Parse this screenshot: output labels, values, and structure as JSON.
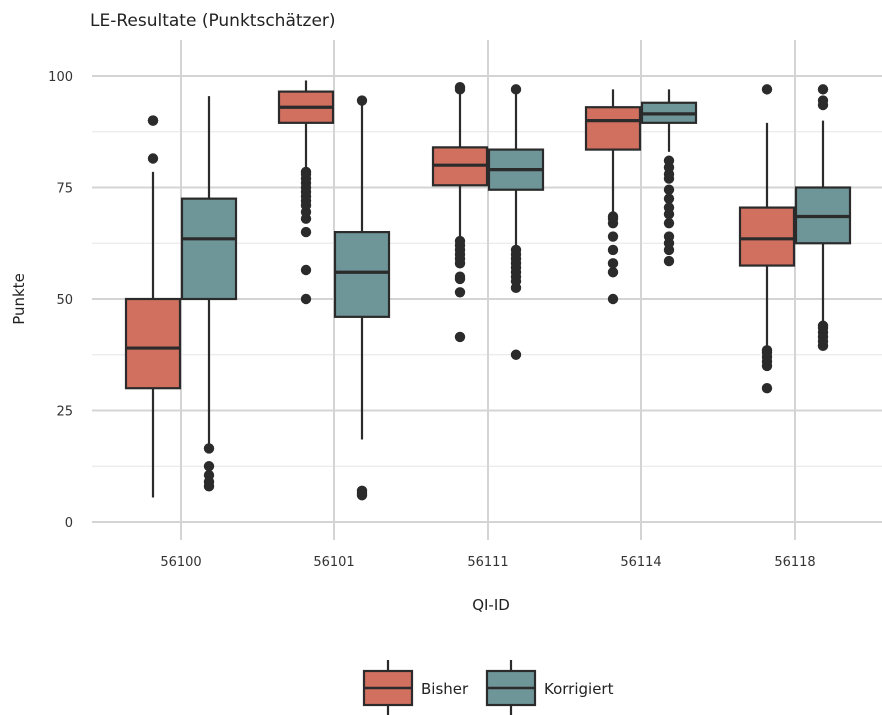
{
  "chart_data": {
    "type": "box",
    "title": "LE-Resultate (Punktschätzer)",
    "xlabel": "QI-ID",
    "ylabel": "Punkte",
    "ylim": [
      0,
      100
    ],
    "yticks": [
      0,
      25,
      50,
      75,
      100
    ],
    "grid": true,
    "legend_position": "bottom",
    "categories": [
      "56100",
      "56101",
      "56111",
      "56114",
      "56118"
    ],
    "series": [
      {
        "name": "Bisher",
        "color": "#d2705f",
        "boxes": [
          {
            "q1": 30,
            "median": 39,
            "q3": 50,
            "whisker_low": 5.5,
            "whisker_high": 78.5,
            "outliers": [
              81.5,
              90,
              90
            ]
          },
          {
            "q1": 89.5,
            "median": 93,
            "q3": 96.5,
            "whisker_low": 79.5,
            "whisker_high": 99,
            "outliers": [
              50,
              56.5,
              65,
              68,
              69.5,
              71,
              72,
              73,
              74,
              75,
              76,
              77,
              78,
              78.5
            ]
          },
          {
            "q1": 75.5,
            "median": 80,
            "q3": 84,
            "whisker_low": 63.5,
            "whisker_high": 96.5,
            "outliers": [
              41.5,
              51.5,
              54.5,
              55,
              58,
              59,
              60,
              61,
              62,
              63,
              97,
              97.5
            ]
          },
          {
            "q1": 83.5,
            "median": 90,
            "q3": 93,
            "whisker_low": 69,
            "whisker_high": 97,
            "outliers": [
              50,
              56,
              58,
              61,
              64,
              67,
              68,
              68.5
            ]
          },
          {
            "q1": 57.5,
            "median": 63.5,
            "q3": 70.5,
            "whisker_low": 39,
            "whisker_high": 89.5,
            "outliers": [
              30,
              35,
              36,
              37,
              38,
              38.5,
              97
            ]
          }
        ]
      },
      {
        "name": "Korrigiert",
        "color": "#6e9699",
        "boxes": [
          {
            "q1": 50,
            "median": 63.5,
            "q3": 72.5,
            "whisker_low": 17,
            "whisker_high": 95.5,
            "outliers": [
              8,
              9,
              10.5,
              12.5,
              16.5
            ]
          },
          {
            "q1": 46,
            "median": 56,
            "q3": 65,
            "whisker_low": 18.5,
            "whisker_high": 94.5,
            "outliers": [
              6,
              6.5,
              7,
              94.5
            ]
          },
          {
            "q1": 74.5,
            "median": 79,
            "q3": 83.5,
            "whisker_low": 61,
            "whisker_high": 96.5,
            "outliers": [
              37.5,
              52.5,
              54,
              55,
              56,
              57,
              58,
              59,
              60,
              61,
              97
            ]
          },
          {
            "q1": 89.5,
            "median": 91.5,
            "q3": 94,
            "whisker_low": 83,
            "whisker_high": 97,
            "outliers": [
              58.5,
              61,
              62.5,
              64,
              67,
              69,
              70.5,
              72.5,
              74.5,
              77,
              78,
              79.5,
              81
            ]
          },
          {
            "q1": 62.5,
            "median": 68.5,
            "q3": 75,
            "whisker_low": 45,
            "whisker_high": 90,
            "outliers": [
              39.5,
              40.5,
              41.5,
              42.5,
              43.5,
              44,
              93.5,
              94.5,
              97
            ]
          }
        ]
      }
    ]
  }
}
